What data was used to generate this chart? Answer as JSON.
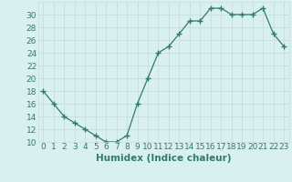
{
  "x": [
    0,
    1,
    2,
    3,
    4,
    5,
    6,
    7,
    8,
    9,
    10,
    11,
    12,
    13,
    14,
    15,
    16,
    17,
    18,
    19,
    20,
    21,
    22,
    23
  ],
  "y": [
    18,
    16,
    14,
    13,
    12,
    11,
    10,
    10,
    11,
    16,
    20,
    24,
    25,
    27,
    29,
    29,
    31,
    31,
    30,
    30,
    30,
    31,
    27,
    25
  ],
  "xlabel": "Humidex (Indice chaleur)",
  "ylim": [
    10,
    32
  ],
  "yticks": [
    10,
    12,
    14,
    16,
    18,
    20,
    22,
    24,
    26,
    28,
    30
  ],
  "line_color": "#2d7d6b",
  "marker": "+",
  "bg_color": "#d9f0f0",
  "grid_color": "#c8dede",
  "tick_label_fontsize": 6.5,
  "xlabel_fontsize": 7.5
}
